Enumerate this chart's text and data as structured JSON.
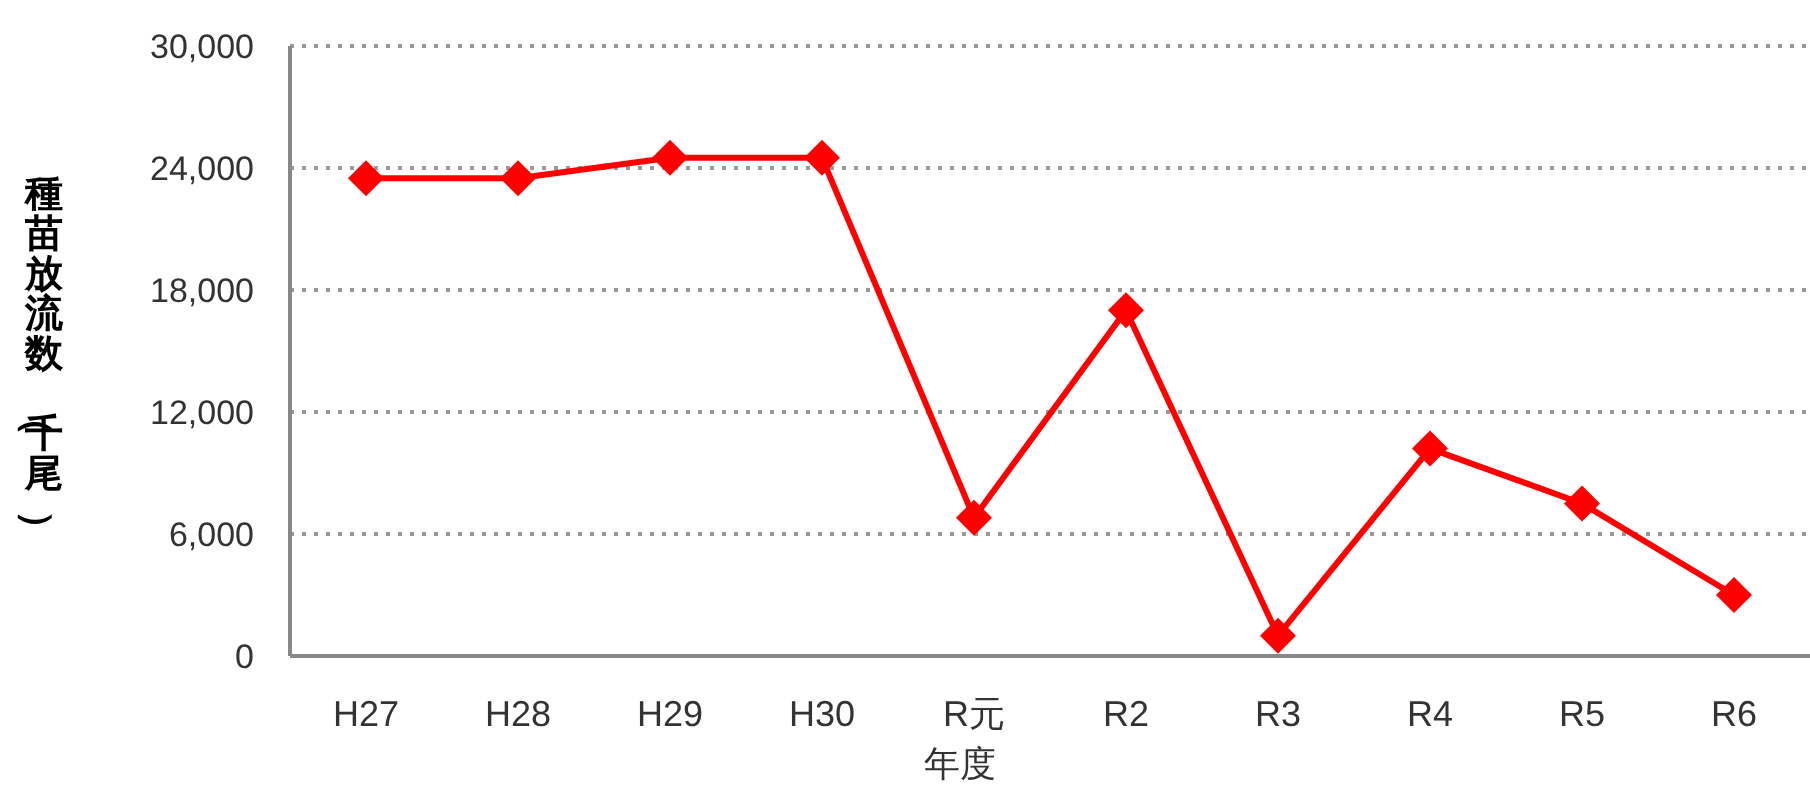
{
  "chart_data": {
    "type": "line",
    "xlabel": "年度",
    "ylabel": "種苗放流数（千尾）",
    "categories": [
      "H27",
      "H28",
      "H29",
      "H30",
      "R元",
      "R2",
      "R3",
      "R4",
      "R5",
      "R6"
    ],
    "series": [
      {
        "color": "#ff0000",
        "values": [
          23500,
          23500,
          24500,
          24500,
          6800,
          17000,
          1000,
          10200,
          7500,
          3000
        ]
      }
    ],
    "ylim": [
      0,
      30000
    ],
    "yticks": [
      0,
      {
        "value": 6000,
        "label": "6,000"
      },
      {
        "value": 12000,
        "label": "12,000"
      },
      {
        "value": 18000,
        "label": "18,000"
      },
      {
        "value": 24000,
        "label": "24,000"
      },
      {
        "value": 30000,
        "label": "30,000"
      }
    ],
    "grid": "y",
    "marker": "diamond",
    "line_style": "solid"
  }
}
